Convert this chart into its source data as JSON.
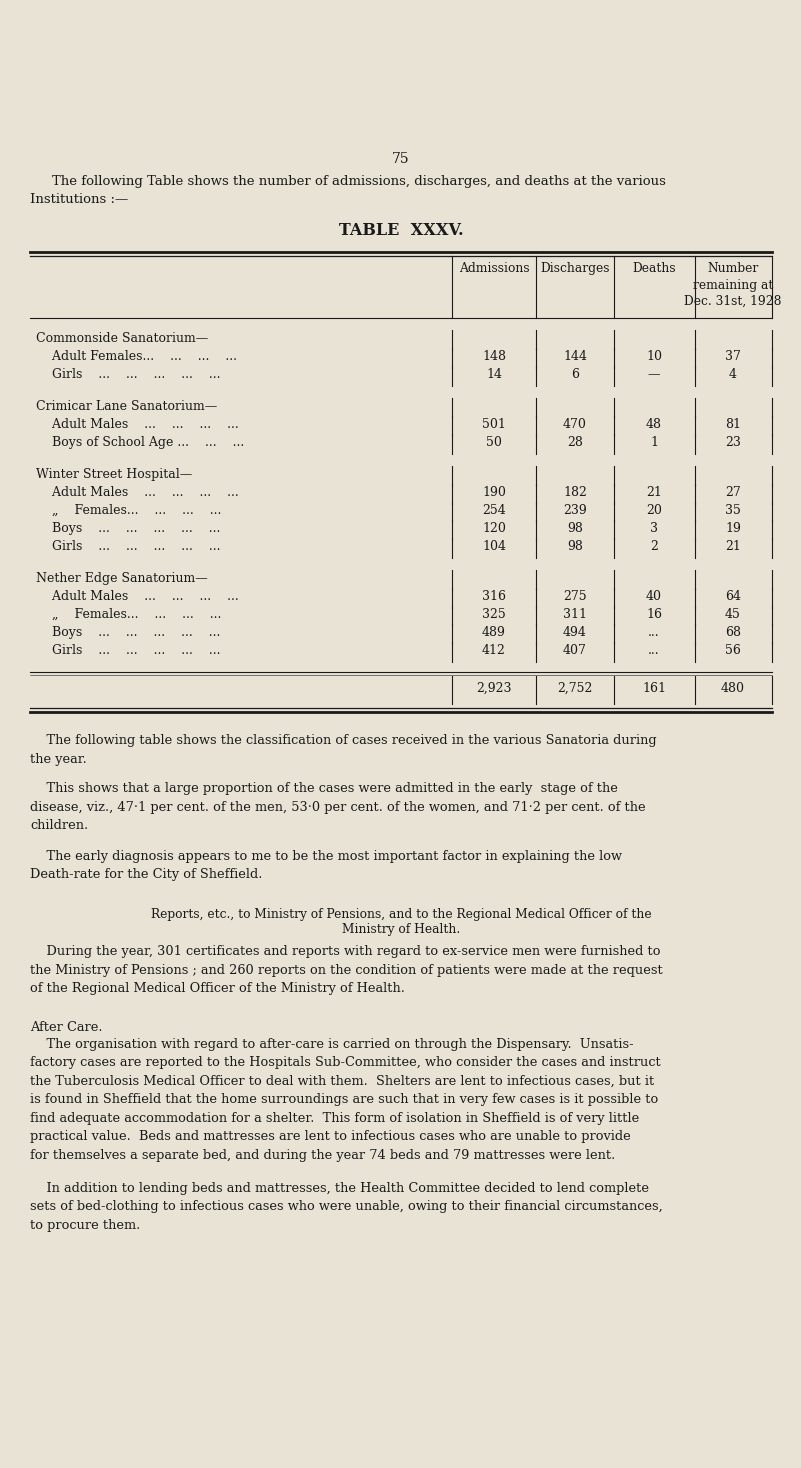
{
  "page_number": "75",
  "bg_color": "#e8e3d5",
  "text_color": "#1a1a1a",
  "intro_line1": "The following Table shows the number of admissions, discharges, and deaths at the various",
  "intro_line2": "Institutions :—",
  "table_title": "TABLE  XXXV.",
  "col_headers": [
    "Admissions",
    "Discharges",
    "Deaths",
    "Number\nremaining at\nDec. 31st, 1928"
  ],
  "sections": [
    {
      "heading": "Commonside Sanatorium—",
      "rows": [
        {
          "label": "    Adult Females...    ...    ...    ...",
          "admissions": "148",
          "discharges": "144",
          "deaths": "10",
          "remaining": "37"
        },
        {
          "label": "    Girls    ...    ...    ...    ...    ...",
          "admissions": "14",
          "discharges": "6",
          "deaths": "—",
          "remaining": "4"
        }
      ]
    },
    {
      "heading": "Crimicar Lane Sanatorium—",
      "rows": [
        {
          "label": "    Adult Males    ...    ...    ...    ...",
          "admissions": "501",
          "discharges": "470",
          "deaths": "48",
          "remaining": "81"
        },
        {
          "label": "    Boys of School Age ...    ...    ...",
          "admissions": "50",
          "discharges": "28",
          "deaths": "1",
          "remaining": "23"
        }
      ]
    },
    {
      "heading": "Winter Street Hospital—",
      "rows": [
        {
          "label": "    Adult Males    ...    ...    ...    ...",
          "admissions": "190",
          "discharges": "182",
          "deaths": "21",
          "remaining": "27"
        },
        {
          "label": "    „    Females...    ...    ...    ...",
          "admissions": "254",
          "discharges": "239",
          "deaths": "20",
          "remaining": "35"
        },
        {
          "label": "    Boys    ...    ...    ...    ...    ...",
          "admissions": "120",
          "discharges": "98",
          "deaths": "3",
          "remaining": "19"
        },
        {
          "label": "    Girls    ...    ...    ...    ...    ...",
          "admissions": "104",
          "discharges": "98",
          "deaths": "2",
          "remaining": "21"
        }
      ]
    },
    {
      "heading": "Nether Edge Sanatorium—",
      "rows": [
        {
          "label": "    Adult Males    ...    ...    ...    ...",
          "admissions": "316",
          "discharges": "275",
          "deaths": "40",
          "remaining": "64"
        },
        {
          "label": "    „    Females...    ...    ...    ...",
          "admissions": "325",
          "discharges": "311",
          "deaths": "16",
          "remaining": "45"
        },
        {
          "label": "    Boys    ...    ...    ...    ...    ...",
          "admissions": "489",
          "discharges": "494",
          "deaths": "...",
          "remaining": "68"
        },
        {
          "label": "    Girls    ...    ...    ...    ...    ...",
          "admissions": "412",
          "discharges": "407",
          "deaths": "...",
          "remaining": "56"
        }
      ]
    }
  ],
  "totals": {
    "admissions": "2,923",
    "discharges": "2,752",
    "deaths": "161",
    "remaining": "480"
  },
  "para1": "    The following table shows the classification of cases received in the various Sanatoria during\nthe year.",
  "para2": "    This shows that a large proportion of the cases were admitted in the early  stage of the\ndisease, viz., 47·1 per cent. of the men, 53·0 per cent. of the women, and 71·2 per cent. of the\nchildren.",
  "para3": "    The early diagnosis appears to me to be the most important factor in explaining the low\nDeath-rate for the City of Sheffield.",
  "section_heading1_line1": "Reports, etc., to Ministry of Pensions, and to the Regional Medical Officer of the",
  "section_heading1_line2": "Ministry of Health.",
  "para4": "    During the year, 301 certificates and reports with regard to ex-service men were furnished to\nthe Ministry of Pensions ; and 260 reports on the condition of patients were made at the request\nof the Regional Medical Officer of the Ministry of Health.",
  "section_heading2": "After Care.",
  "para5": "    The organisation with regard to after-care is carried on through the Dispensary.  Unsatis-\nfactory cases are reported to the Hospitals Sub-Committee, who consider the cases and instruct\nthe Tuberculosis Medical Officer to deal with them.  Shelters are lent to infectious cases, but it\nis found in Sheffield that the home surroundings are such that in very few cases is it possible to\nfind adequate accommodation for a shelter.  This form of isolation in Sheffield is of very little\npractical value.  Beds and mattresses are lent to infectious cases who are unable to provide\nfor themselves a separate bed, and during the year 74 beds and 79 mattresses were lent.",
  "para6": "    In addition to lending beds and mattresses, the Health Committee decided to lend complete\nsets of bed-clothing to infectious cases who were unable, owing to their financial circumstances,\nto procure them."
}
